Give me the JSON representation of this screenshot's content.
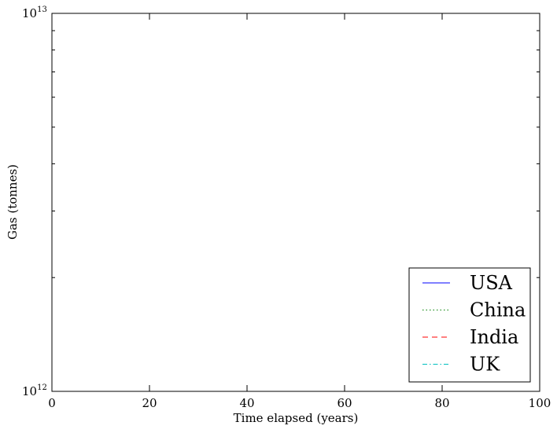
{
  "chart_data": {
    "type": "line",
    "xlabel": "Time elapsed (years)",
    "ylabel": "Gas (tonnes)",
    "xlim": [
      0,
      100
    ],
    "ylim": [
      1000000000000,
      10000000000000
    ],
    "yscale": "log",
    "grid": false,
    "legend_position": "bottom-right",
    "x_ticks": [
      {
        "value": 0,
        "label": "0"
      },
      {
        "value": 20,
        "label": "20"
      },
      {
        "value": 40,
        "label": "40"
      },
      {
        "value": 60,
        "label": "60"
      },
      {
        "value": 80,
        "label": "80"
      },
      {
        "value": 100,
        "label": "100"
      }
    ],
    "y_ticks": [
      {
        "value": 1000000000000,
        "base": "10",
        "exponent": "12"
      },
      {
        "value": 10000000000000,
        "base": "10",
        "exponent": "13"
      }
    ],
    "series": [
      {
        "name": "USA",
        "color": "#0000ff",
        "dash": "solid",
        "x": [],
        "y": []
      },
      {
        "name": "China",
        "color": "#008000",
        "dash": "dotted",
        "x": [],
        "y": []
      },
      {
        "name": "India",
        "color": "#ff0000",
        "dash": "dashed",
        "x": [],
        "y": []
      },
      {
        "name": "UK",
        "color": "#00bfbf",
        "dash": "dashdot",
        "x": [],
        "y": []
      }
    ]
  }
}
